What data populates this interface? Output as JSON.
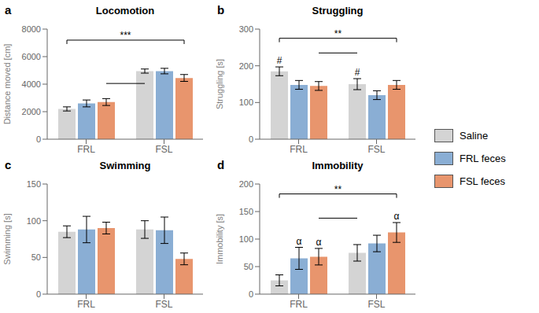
{
  "chart_data": [
    {
      "type": "bar",
      "panel": "a",
      "title": "Locomotion",
      "ylabel": "Distance moved [cm]",
      "categories": [
        "FRL",
        "FSL"
      ],
      "series": [
        {
          "name": "Saline",
          "color": "#d4d4d4",
          "values": [
            2200,
            4950
          ],
          "errors": [
            150,
            150
          ]
        },
        {
          "name": "FRL feces",
          "color": "#8aaed4",
          "values": [
            2600,
            4950
          ],
          "errors": [
            250,
            200
          ]
        },
        {
          "name": "FSL feces",
          "color": "#e8956d",
          "values": [
            2700,
            4450
          ],
          "errors": [
            250,
            250
          ]
        }
      ],
      "ylim": [
        0,
        8000
      ],
      "yticks": [
        0,
        2000,
        4000,
        6000,
        8000
      ],
      "bracket": {
        "text": "***",
        "y_top": 7200,
        "y_lower": 4050
      },
      "legend": "right"
    },
    {
      "type": "bar",
      "panel": "b",
      "title": "Struggling",
      "ylabel": "Struggling [s]",
      "categories": [
        "FRL",
        "FSL"
      ],
      "series": [
        {
          "name": "Saline",
          "color": "#d4d4d4",
          "values": [
            185,
            150
          ],
          "errors": [
            12,
            15
          ]
        },
        {
          "name": "FRL feces",
          "color": "#8aaed4",
          "values": [
            148,
            120
          ],
          "errors": [
            12,
            12
          ]
        },
        {
          "name": "FSL feces",
          "color": "#e8956d",
          "values": [
            145,
            148
          ],
          "errors": [
            12,
            12
          ]
        }
      ],
      "ylim": [
        0,
        300
      ],
      "yticks": [
        0,
        100,
        200,
        300
      ],
      "annotations": [
        {
          "text": "#",
          "series": "Saline",
          "category": "FRL"
        },
        {
          "text": "#",
          "series": "Saline",
          "category": "FSL"
        }
      ],
      "bracket": {
        "text": "**",
        "y_top": 275,
        "y_lower": 235
      }
    },
    {
      "type": "bar",
      "panel": "c",
      "title": "Swimming",
      "ylabel": "Swimming [s]",
      "categories": [
        "FRL",
        "FSL"
      ],
      "series": [
        {
          "name": "Saline",
          "color": "#d4d4d4",
          "values": [
            85,
            88
          ],
          "errors": [
            8,
            12
          ]
        },
        {
          "name": "FRL feces",
          "color": "#8aaed4",
          "values": [
            88,
            87
          ],
          "errors": [
            18,
            18
          ]
        },
        {
          "name": "FSL feces",
          "color": "#e8956d",
          "values": [
            90,
            48
          ],
          "errors": [
            8,
            8
          ]
        }
      ],
      "ylim": [
        0,
        150
      ],
      "yticks": [
        0,
        50,
        100,
        150
      ]
    },
    {
      "type": "bar",
      "panel": "d",
      "title": "Immobility",
      "ylabel": "Immobility [s]",
      "categories": [
        "FRL",
        "FSL"
      ],
      "series": [
        {
          "name": "Saline",
          "color": "#d4d4d4",
          "values": [
            25,
            75
          ],
          "errors": [
            10,
            15
          ]
        },
        {
          "name": "FRL feces",
          "color": "#8aaed4",
          "values": [
            65,
            92
          ],
          "errors": [
            20,
            15
          ]
        },
        {
          "name": "FSL feces",
          "color": "#e8956d",
          "values": [
            68,
            112
          ],
          "errors": [
            15,
            18
          ]
        }
      ],
      "ylim": [
        0,
        200
      ],
      "yticks": [
        0,
        50,
        100,
        150,
        200
      ],
      "annotations": [
        {
          "text": "α",
          "series": "FRL feces",
          "category": "FRL"
        },
        {
          "text": "α",
          "series": "FSL feces",
          "category": "FRL"
        },
        {
          "text": "α",
          "series": "FSL feces",
          "category": "FSL"
        }
      ],
      "bracket": {
        "text": "**",
        "y_top": 182,
        "y_lower": 138
      }
    }
  ]
}
